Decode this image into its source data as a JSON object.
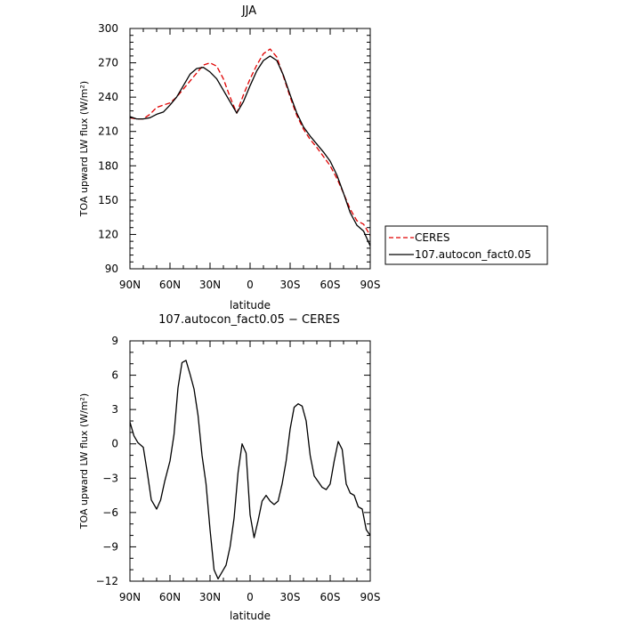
{
  "chart_data": [
    {
      "type": "line",
      "title": "JJA",
      "xlabel": "latitude",
      "ylabel": "TOA upward LW flux (W/m²)",
      "xlim": [
        90,
        -90
      ],
      "ylim": [
        90,
        300
      ],
      "x_ticks": [
        90,
        60,
        30,
        0,
        -30,
        -60,
        -90
      ],
      "x_tick_labels": [
        "90N",
        "60N",
        "30N",
        "0",
        "30S",
        "60S",
        "90S"
      ],
      "y_ticks": [
        90,
        120,
        150,
        180,
        210,
        240,
        270,
        300
      ],
      "y_tick_labels": [
        "90",
        "120",
        "150",
        "180",
        "210",
        "240",
        "270",
        "300"
      ],
      "legend_position": "outside-right",
      "series": [
        {
          "name": "CERES",
          "color": "#e00000",
          "style": "dashed",
          "x": [
            90,
            85,
            80,
            75,
            70,
            65,
            60,
            55,
            50,
            45,
            40,
            35,
            30,
            25,
            20,
            15,
            10,
            5,
            0,
            -5,
            -10,
            -15,
            -20,
            -25,
            -30,
            -35,
            -40,
            -45,
            -50,
            -55,
            -60,
            -65,
            -70,
            -75,
            -80,
            -85,
            -90
          ],
          "values": [
            222,
            221,
            221,
            225,
            231,
            233,
            235,
            240,
            247,
            254,
            261,
            268,
            270,
            267,
            256,
            240,
            226,
            242,
            256,
            268,
            278,
            282,
            275,
            258,
            240,
            224,
            212,
            203,
            196,
            188,
            180,
            169,
            156,
            142,
            132,
            129,
            119
          ]
        },
        {
          "name": "107.autocon_fact0.05",
          "color": "#000000",
          "style": "solid",
          "x": [
            90,
            85,
            80,
            75,
            70,
            65,
            60,
            55,
            50,
            45,
            40,
            35,
            30,
            25,
            20,
            15,
            10,
            5,
            0,
            -5,
            -10,
            -15,
            -20,
            -25,
            -30,
            -35,
            -40,
            -45,
            -50,
            -55,
            -60,
            -65,
            -70,
            -75,
            -80,
            -85,
            -90
          ],
          "values": [
            223,
            221,
            221,
            222,
            225,
            227,
            233,
            240,
            250,
            260,
            265,
            266,
            262,
            256,
            246,
            236,
            226,
            236,
            250,
            263,
            272,
            276,
            272,
            259,
            242,
            226,
            214,
            206,
            199,
            192,
            184,
            172,
            156,
            139,
            128,
            123,
            110
          ]
        }
      ]
    },
    {
      "type": "line",
      "title": "107.autocon_fact0.05 − CERES",
      "xlabel": "latitude",
      "ylabel": "TOA upward LW flux (W/m²)",
      "xlim": [
        90,
        -90
      ],
      "ylim": [
        -12,
        9
      ],
      "x_ticks": [
        90,
        60,
        30,
        0,
        -30,
        -60,
        -90
      ],
      "x_tick_labels": [
        "90N",
        "60N",
        "30N",
        "0",
        "30S",
        "60S",
        "90S"
      ],
      "y_ticks": [
        -12,
        -9,
        -6,
        -3,
        0,
        3,
        6,
        9
      ],
      "y_tick_labels": [
        "−12",
        "−9",
        "−6",
        "−3",
        "0",
        "3",
        "6",
        "9"
      ],
      "series": [
        {
          "color": "#000000",
          "style": "solid",
          "x": [
            90,
            87,
            84,
            80,
            77,
            74,
            70,
            67,
            64,
            60,
            57,
            54,
            51,
            48,
            45,
            42,
            39,
            36,
            33,
            30,
            27,
            24,
            21,
            18,
            15,
            12,
            9,
            6,
            3,
            0,
            -3,
            -6,
            -9,
            -12,
            -15,
            -18,
            -21,
            -24,
            -27,
            -30,
            -33,
            -36,
            -39,
            -42,
            -45,
            -48,
            -51,
            -54,
            -57,
            -60,
            -63,
            -66,
            -69,
            -72,
            -75,
            -78,
            -81,
            -84,
            -87,
            -90
          ],
          "values": [
            1.9,
            0.7,
            0.1,
            -0.3,
            -2.5,
            -4.9,
            -5.7,
            -4.9,
            -3.3,
            -1.5,
            0.8,
            4.9,
            7.1,
            7.3,
            6.1,
            4.8,
            2.5,
            -1.0,
            -3.5,
            -7.5,
            -11.0,
            -11.8,
            -11.2,
            -10.6,
            -9.0,
            -6.5,
            -2.5,
            0.0,
            -0.8,
            -6.2,
            -8.2,
            -6.7,
            -5.0,
            -4.5,
            -5.0,
            -5.3,
            -5.0,
            -3.5,
            -1.5,
            1.3,
            3.2,
            3.5,
            3.3,
            2.0,
            -1.0,
            -2.8,
            -3.3,
            -3.8,
            -4.0,
            -3.5,
            -1.5,
            0.2,
            -0.5,
            -3.5,
            -4.3,
            -4.5,
            -5.5,
            -5.7,
            -7.5,
            -8.0
          ]
        }
      ]
    }
  ]
}
